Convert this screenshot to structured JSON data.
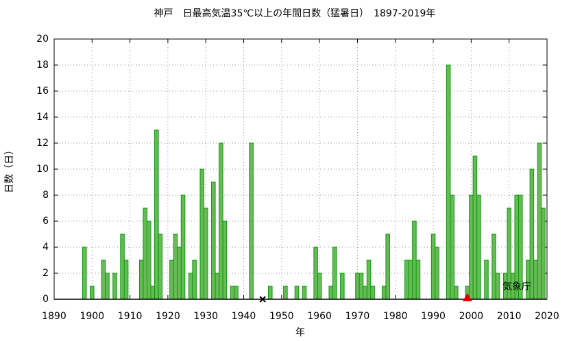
{
  "chart_data": {
    "type": "bar",
    "title": "神戸　日最高気温35℃以上の年間日数（猛暑日）　1897-2019年",
    "xlabel": "年",
    "ylabel": "日数（日）",
    "annotation": "気象庁",
    "x": [
      1898,
      1900,
      1903,
      1904,
      1906,
      1908,
      1909,
      1913,
      1914,
      1915,
      1916,
      1917,
      1918,
      1921,
      1922,
      1923,
      1924,
      1926,
      1927,
      1929,
      1930,
      1932,
      1933,
      1934,
      1935,
      1937,
      1938,
      1942,
      1947,
      1951,
      1954,
      1956,
      1959,
      1960,
      1963,
      1964,
      1966,
      1970,
      1971,
      1972,
      1973,
      1974,
      1977,
      1978,
      1983,
      1984,
      1985,
      1986,
      1990,
      1991,
      1994,
      1995,
      1996,
      1999,
      2000,
      2001,
      2002,
      2004,
      2006,
      2007,
      2009,
      2010,
      2011,
      2012,
      2013,
      2015,
      2016,
      2017,
      2018,
      2019
    ],
    "values": [
      4,
      1,
      3,
      2,
      2,
      5,
      3,
      3,
      7,
      6,
      1,
      13,
      5,
      3,
      5,
      4,
      8,
      2,
      3,
      10,
      7,
      9,
      2,
      12,
      6,
      1,
      1,
      12,
      1,
      1,
      1,
      1,
      4,
      2,
      1,
      4,
      2,
      2,
      2,
      1,
      3,
      1,
      1,
      5,
      3,
      3,
      6,
      3,
      5,
      4,
      18,
      8,
      1,
      1,
      8,
      11,
      8,
      3,
      5,
      2,
      2,
      7,
      2,
      8,
      8,
      3,
      10,
      3,
      12,
      7
    ],
    "color": "#66bb55",
    "edge_color": "#119911",
    "markers": [
      {
        "x": 1945,
        "symbol": "x",
        "color": "#000000"
      },
      {
        "x": 1999,
        "symbol": "triangle",
        "color": "#dd0000"
      }
    ],
    "xlim": [
      1890,
      2020
    ],
    "xticks": [
      1890,
      1900,
      1910,
      1920,
      1930,
      1940,
      1950,
      1960,
      1970,
      1980,
      1990,
      2000,
      2010,
      2020
    ],
    "ylim": [
      0,
      20
    ],
    "yticks": [
      0,
      2,
      4,
      6,
      8,
      10,
      12,
      14,
      16,
      18,
      20
    ],
    "grid": true
  }
}
